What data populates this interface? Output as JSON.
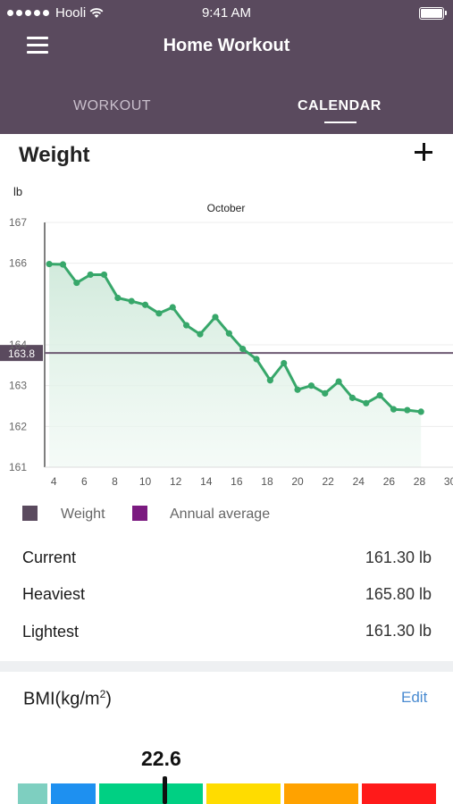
{
  "status_bar": {
    "carrier": "Hooli",
    "time": "9:41 AM"
  },
  "header": {
    "title": "Home Workout",
    "tabs": [
      {
        "label": "WORKOUT",
        "active": false
      },
      {
        "label": "CALENDAR",
        "active": true
      }
    ]
  },
  "weight_section": {
    "title": "Weight",
    "unit_label": "lb",
    "month_label": "October"
  },
  "chart_data": {
    "type": "line",
    "xlabel": "",
    "ylabel": "lb",
    "x_ticks": [
      "4",
      "6",
      "8",
      "10",
      "12",
      "14",
      "16",
      "18",
      "20",
      "22",
      "24",
      "26",
      "28",
      "30"
    ],
    "y_ticks": [
      "167",
      "166",
      "164",
      "163",
      "162",
      "161"
    ],
    "y_tick_values": [
      167,
      166,
      164,
      163,
      162,
      161
    ],
    "ylim": [
      161,
      167
    ],
    "xlim": [
      3.4,
      30.2
    ],
    "series": [
      {
        "name": "Weight",
        "color": "#37a76a",
        "points": [
          [
            3.7,
            165.98
          ],
          [
            4.6,
            165.97
          ],
          [
            5.5,
            165.52
          ],
          [
            6.4,
            165.72
          ],
          [
            7.3,
            165.72
          ],
          [
            8.2,
            165.15
          ],
          [
            9.1,
            165.07
          ],
          [
            10.0,
            164.98
          ],
          [
            10.9,
            164.77
          ],
          [
            11.8,
            164.92
          ],
          [
            12.7,
            164.48
          ],
          [
            13.6,
            164.26
          ],
          [
            14.6,
            164.68
          ],
          [
            15.5,
            164.28
          ],
          [
            16.4,
            163.9
          ],
          [
            17.3,
            163.65
          ],
          [
            18.2,
            163.13
          ],
          [
            19.1,
            163.55
          ],
          [
            20.0,
            162.9
          ],
          [
            20.9,
            163.0
          ],
          [
            21.8,
            162.81
          ],
          [
            22.7,
            163.1
          ],
          [
            23.6,
            162.7
          ],
          [
            24.5,
            162.57
          ],
          [
            25.4,
            162.76
          ],
          [
            26.3,
            162.42
          ],
          [
            27.2,
            162.4
          ],
          [
            28.1,
            162.36
          ]
        ]
      }
    ],
    "reference_line": {
      "name": "Annual average",
      "value": 163.8,
      "label": "163.8",
      "color": "#6e5a72"
    },
    "grid": true,
    "legend": [
      {
        "label": "Weight",
        "color": "#5a4a5e"
      },
      {
        "label": "Annual average",
        "color": "#7b1a80"
      }
    ]
  },
  "stats": [
    {
      "label": "Current",
      "value": "161.30",
      "unit": "lb"
    },
    {
      "label": "Heaviest",
      "value": "165.80",
      "unit": "lb"
    },
    {
      "label": "Lightest",
      "value": "161.30",
      "unit": "lb"
    }
  ],
  "bmi": {
    "title": "BMI(kg/m",
    "title_sup": "2",
    "title_suffix": ")",
    "edit_label": "Edit",
    "value": "22.6",
    "scale_colors": [
      "#7ecfc0",
      "#1e90f0",
      "#00d083",
      "#ffdc00",
      "#ffa200",
      "#ff1a1a"
    ]
  }
}
